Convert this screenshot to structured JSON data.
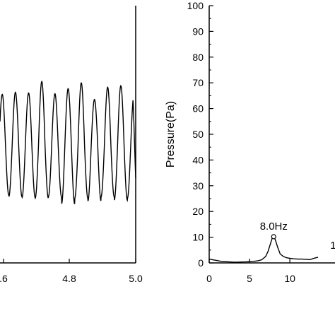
{
  "chart_data": [
    {
      "type": "line",
      "title": "",
      "xlabel": "",
      "ylabel": "",
      "xlim": [
        4.6,
        5.0
      ],
      "x_ticks": [
        ".6",
        "4.8",
        "5.0"
      ],
      "series": [
        {
          "style": "oscillation",
          "frequency_cycles_per_unit": 25,
          "peaks_normalized": [
            0.72,
            0.75,
            0.74,
            0.9,
            0.73,
            0.8,
            0.88,
            0.65,
            0.82,
            0.84,
            0.72
          ],
          "troughs_normalized": [
            -0.68,
            -0.7,
            -0.71,
            -0.72,
            -0.7,
            -0.8,
            -0.72,
            -0.76,
            -0.7,
            -0.75,
            -0.72
          ]
        }
      ]
    },
    {
      "type": "line",
      "title": "",
      "xlabel": "",
      "ylabel": "Pressure(Pa)",
      "xlim": [
        0,
        15.6
      ],
      "ylim": [
        0,
        100
      ],
      "x_ticks": [
        "0",
        "5",
        "10"
      ],
      "y_ticks": [
        "0",
        "10",
        "20",
        "30",
        "40",
        "50",
        "60",
        "70",
        "80",
        "90",
        "100"
      ],
      "series": [
        {
          "x": [
            0,
            0.5,
            1,
            1.5,
            2,
            2.5,
            3,
            3.5,
            4,
            4.5,
            5,
            5.5,
            6,
            6.5,
            7,
            7.3,
            7.6,
            7.8,
            8.0,
            8.2,
            8.5,
            8.8,
            9.2,
            9.6,
            10,
            10.5,
            11,
            11.5,
            12,
            12.5,
            13,
            13.5
          ],
          "y": [
            1.5,
            1.2,
            0.9,
            0.6,
            0.5,
            0.4,
            0.3,
            0.3,
            0.35,
            0.4,
            0.5,
            0.6,
            0.8,
            1.2,
            2.5,
            4.5,
            7.5,
            9.5,
            10.2,
            9.0,
            6.0,
            3.5,
            2.5,
            2.0,
            1.8,
            1.6,
            1.5,
            1.5,
            1.4,
            1.3,
            1.8,
            2.2
          ]
        }
      ],
      "annotations": [
        {
          "label": "8.0Hz",
          "x": 8.0,
          "y": 10.2
        },
        {
          "label": "1",
          "x": 15.0,
          "y": 6.0
        }
      ]
    }
  ]
}
